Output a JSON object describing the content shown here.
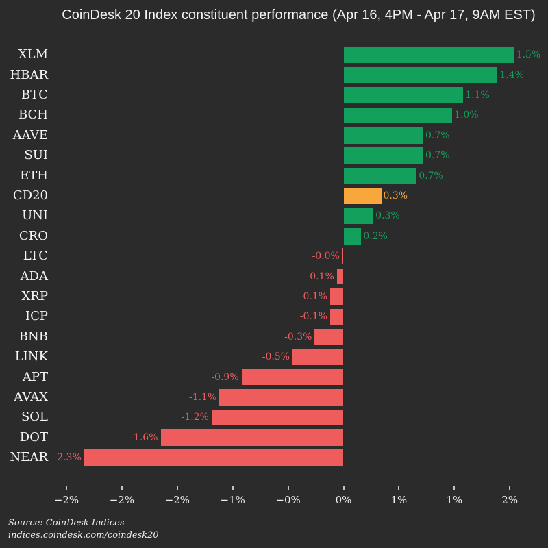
{
  "colors": {
    "background": "#2B2B2B",
    "positive": "#12A05C",
    "negative": "#EE5C5C",
    "highlight": "#F7A73B",
    "text": "#F2F2F2",
    "tick": "#C4C4C4"
  },
  "source": {
    "line1": "Source: CoinDesk Indices",
    "line2": "indices.coindesk.com/coindesk20"
  },
  "chart_data": {
    "type": "bar",
    "orientation": "horizontal",
    "title": "CoinDesk 20 Index constituent performance (Apr 16, 4PM - Apr 17, 9AM EST)",
    "categories": [
      "XLM",
      "HBAR",
      "BTC",
      "BCH",
      "AAVE",
      "SUI",
      "ETH",
      "CD20",
      "UNI",
      "CRO",
      "LTC",
      "ADA",
      "XRP",
      "ICP",
      "BNB",
      "LINK",
      "APT",
      "AVAX",
      "SOL",
      "DOT",
      "NEAR"
    ],
    "values": [
      1.54,
      1.39,
      1.08,
      0.98,
      0.72,
      0.72,
      0.66,
      0.34,
      0.27,
      0.16,
      -0.01,
      -0.06,
      -0.12,
      -0.12,
      -0.26,
      -0.46,
      -0.92,
      -1.12,
      -1.19,
      -1.65,
      -2.34
    ],
    "value_labels": [
      "1.5%",
      "1.4%",
      "1.1%",
      "1.0%",
      "0.7%",
      "0.7%",
      "0.7%",
      "0.3%",
      "0.3%",
      "0.2%",
      "-0.0%",
      "-0.1%",
      "-0.1%",
      "-0.1%",
      "-0.3%",
      "-0.5%",
      "-0.9%",
      "-1.1%",
      "-1.2%",
      "-1.6%",
      "-2.3%"
    ],
    "bar_colors": [
      "positive",
      "positive",
      "positive",
      "positive",
      "positive",
      "positive",
      "positive",
      "highlight",
      "positive",
      "positive",
      "negative",
      "negative",
      "negative",
      "negative",
      "negative",
      "negative",
      "negative",
      "negative",
      "negative",
      "negative",
      "negative"
    ],
    "highlighted_category": "CD20",
    "x_tick_labels": [
      "−2%",
      "−2%",
      "−2%",
      "−1%",
      "−0%",
      "0%",
      "1%",
      "1%",
      "2%"
    ],
    "x_tick_values": [
      -2.5,
      -2.0,
      -1.5,
      -1.0,
      -0.5,
      0.0,
      0.5,
      1.0,
      1.5
    ],
    "xlim": [
      -2.6,
      1.75
    ],
    "grid": false,
    "legend": false,
    "ylabel": "",
    "xlabel": ""
  }
}
